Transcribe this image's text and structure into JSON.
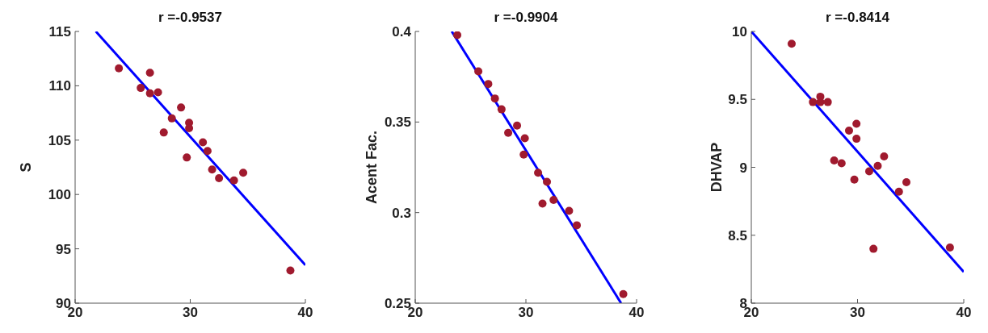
{
  "chart_data": [
    {
      "type": "scatter",
      "title": "r =-0.9537",
      "ylabel": "S",
      "xlim": [
        20,
        40
      ],
      "xticks": [
        20,
        30,
        40
      ],
      "ylim": [
        90,
        115
      ],
      "yticks": [
        90,
        95,
        100,
        105,
        110,
        115
      ],
      "grid": false,
      "series": [
        {
          "marker": "circle",
          "color": "#a01a2e",
          "x": [
            23.8,
            25.7,
            26.5,
            26.5,
            27.2,
            27.7,
            28.4,
            29.2,
            29.9,
            29.9,
            29.7,
            31.1,
            31.5,
            31.9,
            32.5,
            33.8,
            34.6,
            38.7
          ],
          "values": [
            111.6,
            109.8,
            111.2,
            109.3,
            109.4,
            105.7,
            107.0,
            108.0,
            106.6,
            106.1,
            103.4,
            104.8,
            104.0,
            102.3,
            101.5,
            101.3,
            102.0,
            93.0
          ]
        },
        {
          "type": "line",
          "marker": "none",
          "color": "#0000ff",
          "x": [
            21.8,
            40
          ],
          "values": [
            115,
            93.5
          ]
        }
      ]
    },
    {
      "type": "scatter",
      "title": "r =-0.9904",
      "ylabel": "Acent Fac.",
      "xlim": [
        20,
        40
      ],
      "xticks": [
        20,
        30,
        40
      ],
      "ylim": [
        0.25,
        0.4
      ],
      "yticks": [
        0.25,
        0.3,
        0.35,
        0.4
      ],
      "grid": false,
      "series": [
        {
          "marker": "circle",
          "color": "#a01a2e",
          "x": [
            23.8,
            25.7,
            26.6,
            27.2,
            27.8,
            28.4,
            29.2,
            29.9,
            29.8,
            31.1,
            31.9,
            31.5,
            32.5,
            33.9,
            34.6,
            38.8
          ],
          "values": [
            0.398,
            0.378,
            0.371,
            0.363,
            0.357,
            0.344,
            0.348,
            0.341,
            0.332,
            0.322,
            0.317,
            0.305,
            0.307,
            0.301,
            0.293,
            0.255
          ]
        },
        {
          "type": "line",
          "marker": "none",
          "color": "#0000ff",
          "x": [
            23.3,
            38.6
          ],
          "values": [
            0.4,
            0.25
          ]
        }
      ]
    },
    {
      "type": "scatter",
      "title": "r =-0.8414",
      "ylabel": "DHVAP",
      "xlim": [
        20,
        40
      ],
      "xticks": [
        20,
        30,
        40
      ],
      "ylim": [
        8,
        10
      ],
      "yticks": [
        8,
        8.5,
        9,
        9.5,
        10
      ],
      "grid": false,
      "series": [
        {
          "marker": "circle",
          "color": "#a01a2e",
          "x": [
            23.8,
            25.8,
            26.5,
            26.5,
            27.2,
            27.8,
            28.5,
            29.2,
            29.9,
            29.9,
            29.7,
            31.1,
            31.9,
            32.5,
            31.5,
            33.9,
            34.6,
            38.7
          ],
          "values": [
            9.91,
            9.48,
            9.52,
            9.48,
            9.48,
            9.05,
            9.03,
            9.27,
            9.32,
            9.21,
            8.91,
            8.97,
            9.01,
            9.08,
            8.4,
            8.82,
            8.89,
            8.41
          ]
        },
        {
          "type": "line",
          "marker": "none",
          "color": "#0000ff",
          "x": [
            20,
            40
          ],
          "values": [
            10,
            8.23
          ]
        }
      ]
    }
  ]
}
